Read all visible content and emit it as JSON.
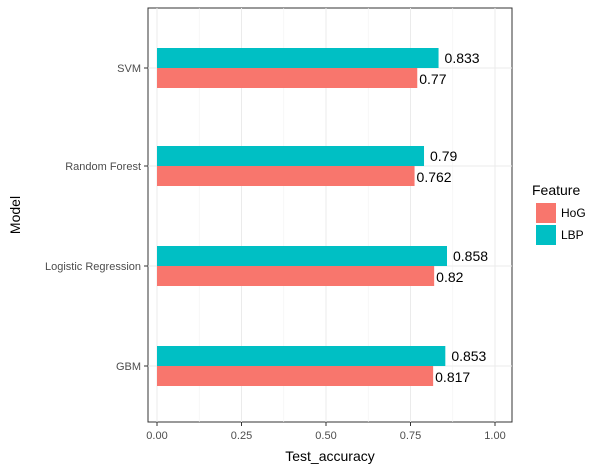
{
  "chart_data": {
    "type": "bar",
    "orientation": "horizontal",
    "categories": [
      "GBM",
      "Logistic Regression",
      "Random Forest",
      "SVM"
    ],
    "series": [
      {
        "name": "HoG",
        "values": [
          0.817,
          0.82,
          0.762,
          0.77
        ],
        "color": "#F8766D"
      },
      {
        "name": "LBP",
        "values": [
          0.853,
          0.858,
          0.79,
          0.833
        ],
        "color": "#00BFC4"
      }
    ],
    "data_labels": {
      "HoG": [
        "0.817",
        "0.82",
        "0.762",
        "0.77"
      ],
      "LBP": [
        "0.853",
        "0.858",
        "0.79",
        "0.833"
      ]
    },
    "x_ticks": [
      "0.00",
      "0.25",
      "0.50",
      "0.75",
      "1.00"
    ],
    "xlabel": "Test_accuracy",
    "ylabel": "Model",
    "xlim": [
      0,
      1
    ],
    "grid": true,
    "legend": {
      "title": "Feature",
      "placement": "right"
    }
  }
}
